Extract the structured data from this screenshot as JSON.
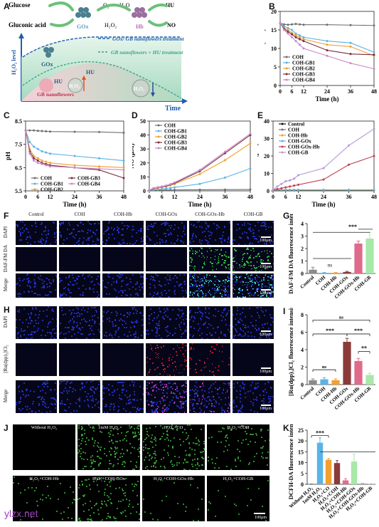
{
  "panelA": {
    "letter": "A",
    "glucose": "Glucose",
    "gox1": "GOx",
    "o2": "O₂",
    "h2o": "H₂O",
    "hb": "Hb",
    "hu": "HU",
    "gluconic": "Gluconic acid",
    "h2o2": "H₂O₂",
    "no": "NO",
    "legend1": "GOx/ GB nanoflowers treatment",
    "legend2": "GB nanoflowers + HU treatment",
    "ylabel": "H₂O₂ level",
    "xlabel": "Time",
    "gox2": "GOx",
    "hu2": "HU",
    "hu3": "HU",
    "gb": "GB nanoflowers",
    "h2o2a": "H₂O₂",
    "h2o2b": "H₂O₂"
  },
  "panelB": {
    "letter": "B",
    "ylabel": "Glucose (mM)",
    "xlabel": "Time (h)",
    "xticks": [
      0,
      6,
      12,
      24,
      36,
      48
    ],
    "yticks": [
      0,
      5,
      10,
      15,
      20
    ],
    "ylim": [
      0,
      20
    ],
    "series": [
      {
        "name": "COH",
        "color": "#707070",
        "x": [
          0,
          2,
          4,
          6,
          8,
          10,
          12,
          24,
          36,
          48
        ],
        "y": [
          16.8,
          16.5,
          16.4,
          16.5,
          16.6,
          16.5,
          16.4,
          16.4,
          16.3,
          16.2
        ]
      },
      {
        "name": "COH-GB1",
        "color": "#5ab4e6",
        "x": [
          0,
          2,
          4,
          6,
          8,
          10,
          12,
          24,
          36,
          48
        ],
        "y": [
          16.8,
          16,
          15.5,
          15,
          14,
          13.5,
          13,
          12,
          11.5,
          9
        ]
      },
      {
        "name": "COH-GB2",
        "color": "#f2a030",
        "x": [
          0,
          2,
          4,
          6,
          8,
          10,
          12,
          24,
          36,
          48
        ],
        "y": [
          16.8,
          15.5,
          15,
          14.2,
          13.5,
          13,
          12.5,
          11,
          10.5,
          8
        ]
      },
      {
        "name": "COH-GB3",
        "color": "#7a2f3a",
        "x": [
          0,
          2,
          4,
          6,
          8,
          10,
          12,
          24,
          36,
          48
        ],
        "y": [
          16.8,
          15.3,
          14.5,
          13.8,
          13,
          12.5,
          12,
          9.5,
          8.5,
          8.3
        ]
      },
      {
        "name": "COH-GB4",
        "color": "#cc88cc",
        "x": [
          0,
          2,
          4,
          6,
          8,
          10,
          12,
          24,
          36,
          48
        ],
        "y": [
          16.8,
          15,
          14,
          13,
          12,
          11,
          10,
          8,
          6,
          4.5
        ]
      }
    ]
  },
  "panelC": {
    "letter": "C",
    "ylabel": "pH",
    "xlabel": "Time (h)",
    "xticks": [
      0,
      6,
      12,
      24,
      36,
      48
    ],
    "yticks": [
      5.5,
      6.5,
      7.5,
      8.5
    ],
    "ylim": [
      5.5,
      8.5
    ],
    "series": [
      {
        "name": "COH",
        "color": "#707070",
        "x": [
          0,
          2,
          4,
          6,
          8,
          10,
          12,
          24,
          36,
          48
        ],
        "y": [
          8.1,
          8.1,
          8.1,
          8.08,
          8.07,
          8.06,
          8.05,
          8.04,
          8.03,
          8.0
        ]
      },
      {
        "name": "COH-GB1",
        "color": "#5ab4e6",
        "x": [
          0,
          2,
          4,
          6,
          8,
          10,
          12,
          24,
          36,
          48
        ],
        "y": [
          8.1,
          7.6,
          7.4,
          7.3,
          7.2,
          7.15,
          7.1,
          7.0,
          6.9,
          6.8
        ]
      },
      {
        "name": "COH-GB2",
        "color": "#f2a030",
        "x": [
          0,
          2,
          4,
          6,
          8,
          10,
          12,
          24,
          36,
          48
        ],
        "y": [
          8.1,
          7.3,
          7.0,
          6.9,
          6.8,
          6.75,
          6.7,
          6.6,
          6.55,
          6.5
        ]
      },
      {
        "name": "COH-GB3",
        "color": "#7a2f3a",
        "x": [
          0,
          2,
          4,
          6,
          8,
          10,
          12,
          24,
          36,
          48
        ],
        "y": [
          8.1,
          7.2,
          6.9,
          6.8,
          6.7,
          6.65,
          6.6,
          6.5,
          6.4,
          6.05
        ]
      },
      {
        "name": "COH-GB4",
        "color": "#cc88cc",
        "x": [
          0,
          2,
          4,
          6,
          8,
          10,
          12,
          24,
          36,
          48
        ],
        "y": [
          8.1,
          7.1,
          6.8,
          6.7,
          6.65,
          6.6,
          6.55,
          6.5,
          6.45,
          6.4
        ]
      }
    ]
  },
  "panelD": {
    "letter": "D",
    "ylabel": "NO (μM)",
    "xlabel": "Time (h)",
    "xticks": [
      0,
      6,
      12,
      24,
      36,
      48
    ],
    "yticks": [
      0,
      10,
      20,
      30,
      40,
      50
    ],
    "ylim": [
      0,
      50
    ],
    "series": [
      {
        "name": "COH",
        "color": "#707070",
        "x": [
          0,
          2,
          4,
          6,
          8,
          10,
          12,
          24,
          36,
          48
        ],
        "y": [
          0.5,
          0.5,
          0.5,
          0.6,
          0.6,
          0.6,
          0.7,
          0.8,
          0.9,
          1.0
        ]
      },
      {
        "name": "COH-GB1",
        "color": "#5ab4e6",
        "x": [
          0,
          2,
          4,
          6,
          8,
          10,
          12,
          24,
          36,
          48
        ],
        "y": [
          0.5,
          0.8,
          1.0,
          1.3,
          1.6,
          2,
          2.5,
          5,
          9.5,
          16
        ]
      },
      {
        "name": "COH-GB2",
        "color": "#f2a030",
        "x": [
          0,
          2,
          4,
          6,
          8,
          10,
          12,
          24,
          36,
          48
        ],
        "y": [
          0.5,
          1.5,
          2,
          2.5,
          3,
          4,
          5,
          12,
          22,
          34
        ]
      },
      {
        "name": "COH-GB3",
        "color": "#7a2f3a",
        "x": [
          0,
          2,
          4,
          6,
          8,
          10,
          12,
          24,
          36,
          48
        ],
        "y": [
          0.5,
          1.8,
          2.5,
          3,
          3.5,
          4.5,
          5.5,
          14,
          27,
          40
        ]
      },
      {
        "name": "COH-GB4",
        "color": "#cc88cc",
        "x": [
          0,
          2,
          4,
          6,
          8,
          10,
          12,
          24,
          36,
          48
        ],
        "y": [
          0.5,
          2,
          2.6,
          3.2,
          3.8,
          4.8,
          6,
          15,
          28,
          41
        ]
      }
    ]
  },
  "panelE": {
    "letter": "E",
    "ylabel": "NO (μM)",
    "xlabel": "Time (h)",
    "xticks": [
      0,
      6,
      12,
      24,
      36,
      48
    ],
    "yticks": [
      0,
      10,
      20,
      30,
      40
    ],
    "ylim": [
      0,
      40
    ],
    "series": [
      {
        "name": "Control",
        "color": "#111111",
        "x": [
          0,
          2,
          4,
          6,
          8,
          10,
          12,
          24,
          36,
          48
        ],
        "y": [
          0.3,
          0.3,
          0.3,
          0.3,
          0.3,
          0.3,
          0.3,
          0.3,
          0.3,
          0.3
        ]
      },
      {
        "name": "COH",
        "color": "#707070",
        "x": [
          0,
          2,
          4,
          6,
          8,
          10,
          12,
          24,
          36,
          48
        ],
        "y": [
          0.4,
          0.4,
          0.4,
          0.4,
          0.4,
          0.4,
          0.4,
          0.4,
          0.4,
          0.4
        ]
      },
      {
        "name": "COH-Hb",
        "color": "#f2a030",
        "x": [
          0,
          2,
          4,
          6,
          8,
          10,
          12,
          24,
          36,
          48
        ],
        "y": [
          0.5,
          0.5,
          0.5,
          0.5,
          0.5,
          0.5,
          0.5,
          0.5,
          0.5,
          0.5
        ]
      },
      {
        "name": "COH-GOx",
        "color": "#5ab4e6",
        "x": [
          0,
          2,
          4,
          6,
          8,
          10,
          12,
          24,
          36,
          48
        ],
        "y": [
          0.6,
          0.6,
          0.6,
          0.6,
          0.6,
          0.6,
          0.6,
          0.6,
          0.6,
          0.6
        ]
      },
      {
        "name": "COH-GOx-Hb",
        "color": "#c04050",
        "x": [
          0,
          2,
          4,
          6,
          8,
          10,
          12,
          24,
          36,
          48
        ],
        "y": [
          0.6,
          1,
          1.5,
          2,
          2.5,
          3,
          3.5,
          6.5,
          15,
          20
        ]
      },
      {
        "name": "COH-GB",
        "color": "#b59ad6",
        "x": [
          0,
          2,
          4,
          6,
          8,
          10,
          12,
          24,
          36,
          48
        ],
        "y": [
          0.6,
          2.5,
          4,
          5.5,
          6,
          7,
          9,
          13,
          26,
          35.5
        ]
      }
    ]
  },
  "panelF": {
    "letter": "F",
    "columns": [
      "Control",
      "COH",
      "COH-Hb",
      "COH-GOx",
      "COH-GOx-Hb",
      "COH-GB"
    ],
    "rows": [
      "DAPI",
      "DAF-FM DA",
      "Merge"
    ],
    "scale": "100μm"
  },
  "panelG": {
    "letter": "G",
    "ylabel": "DAF-FM DA fluorescence intensity",
    "categories": [
      "Control",
      "COH",
      "COH-Hb",
      "COH-GOx",
      "COH-GOx-Hb",
      "COH-GB"
    ],
    "values": [
      0.3,
      0.05,
      0.05,
      0.12,
      2.4,
      2.8
    ],
    "errors": [
      0.2,
      0.03,
      0.03,
      0.05,
      0.2,
      0.5
    ],
    "yticks": [
      0,
      1,
      2,
      3,
      4
    ],
    "ylim": [
      0,
      4
    ],
    "colors": [
      "#8a8a8a",
      "#5ab4e6",
      "#f2a030",
      "#8b3a3a",
      "#e06a8a",
      "#a8e8a8"
    ],
    "sig1": "***",
    "sig2": "ns"
  },
  "panelH": {
    "letter": "H",
    "rows": [
      "DAPI",
      "[Ru(dpp)₃]Cl₂",
      "Merge"
    ],
    "scale": "100μm"
  },
  "panelI": {
    "letter": "I",
    "ylabel": "[Ru(dpp)₃]Cl₂ fluorescence intensity",
    "categories": [
      "Control",
      "COH",
      "COH-Hb",
      "COH-GOx",
      "COH-GOx-Hb",
      "COH-GB"
    ],
    "values": [
      0.5,
      0.6,
      0.5,
      4.9,
      2.7,
      1.1
    ],
    "errors": [
      0.15,
      0.2,
      0.15,
      0.4,
      0.3,
      0.2
    ],
    "yticks": [
      0,
      2,
      4,
      6,
      8
    ],
    "ylim": [
      0,
      8
    ],
    "colors": [
      "#8a8a8a",
      "#5ab4e6",
      "#f2a030",
      "#8b3a3a",
      "#e06a8a",
      "#a8e8a8"
    ],
    "sig_ns1": "ns",
    "sig_ns2": "ns",
    "sig_a": "***",
    "sig_b": "***",
    "sig_c": "**"
  },
  "panelJ": {
    "letter": "J",
    "captions": [
      "Without H₂O₂",
      "1mM H₂O₂",
      "H₂O₂+CO",
      "H₂O₂+COH",
      "H₂O₂+COH-Hb",
      "H₂O₂+COH-GOx",
      "H₂O₂+COH-GOx-Hb",
      "H₂O₂+COH-GB"
    ],
    "scale": "100μm"
  },
  "panelK": {
    "letter": "K",
    "ylabel": "DCFH-DA fluorescence intensity",
    "categories": [
      "Without H₂O₂",
      "1mM H₂O₂",
      "H₂O₂+CO",
      "H₂O₂+COH",
      "H₂O₂+COH-Hb",
      "H₂O₂+COH-GOx",
      "H₂O₂+COH-GOx-Hb",
      "H₂O₂+COH-GB"
    ],
    "values": [
      0.1,
      19.2,
      11.3,
      9.8,
      1.8,
      10.5,
      0.3,
      0.2
    ],
    "errors": [
      0.05,
      2.3,
      0.6,
      1.2,
      0.8,
      3.5,
      0.1,
      0.1
    ],
    "yticks": [
      0,
      5,
      10,
      15,
      20,
      25
    ],
    "ylim": [
      0,
      25
    ],
    "colors": [
      "#6a6a6a",
      "#5ab4e6",
      "#f2a030",
      "#8b3a3a",
      "#e06a8a",
      "#a8e8a8",
      "#a0a0a0",
      "#c8b0e0"
    ],
    "sig": "***"
  },
  "watermark": "ylzx.net"
}
